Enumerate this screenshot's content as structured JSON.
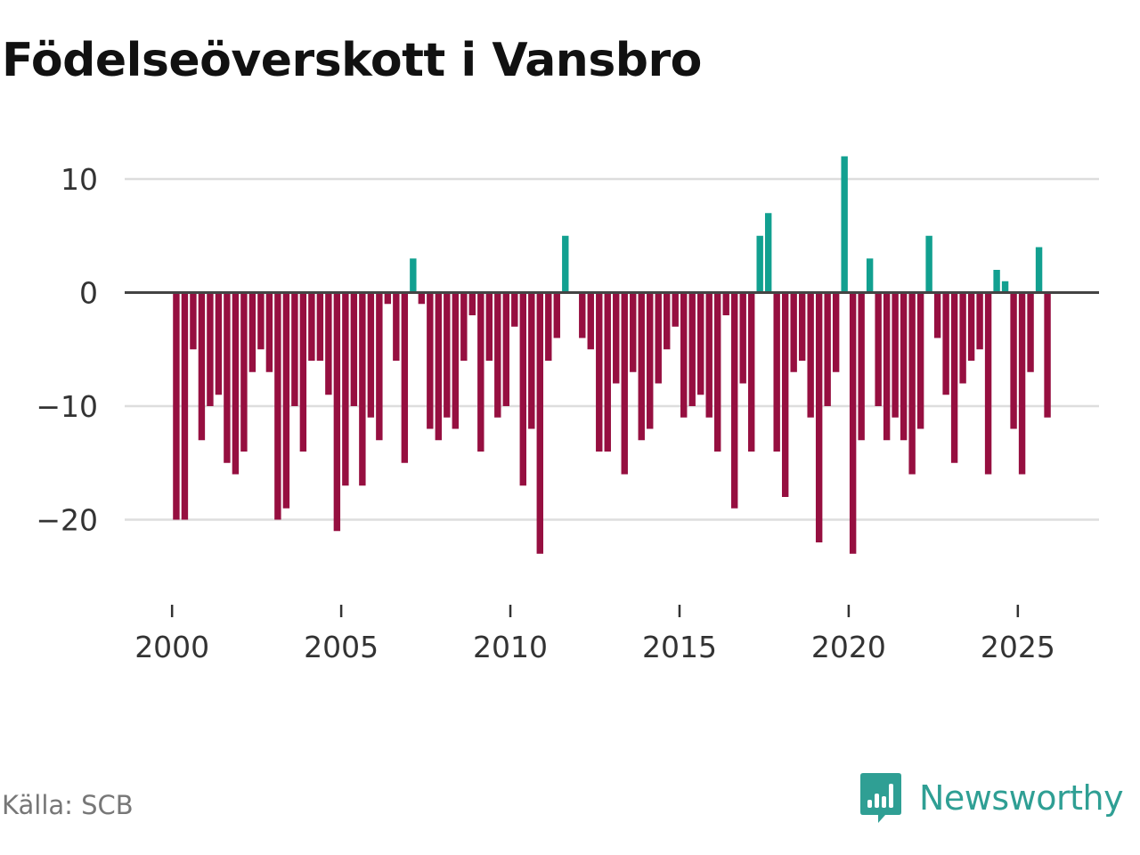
{
  "title": "Födelseöverskott i Vansbro",
  "source": "Källa: SCB",
  "brand": {
    "name": "Newsworthy",
    "icon": "newsworthy-logo-icon"
  },
  "colors": {
    "positive": "#12a090",
    "negative": "#960f40",
    "grid": "#dddddd",
    "zero_line": "#444444",
    "axis_text": "#333333",
    "brand": "#2f9f94"
  },
  "chart_data": {
    "type": "bar",
    "title": "Födelseöverskott i Vansbro",
    "xlabel": "",
    "ylabel": "",
    "x_start": 2000.0,
    "x_step": 0.25,
    "xlim": [
      1998.6,
      2027.4
    ],
    "xticks": [
      2000,
      2005,
      2010,
      2015,
      2020,
      2025
    ],
    "xtick_labels": [
      "2000",
      "2005",
      "2010",
      "2015",
      "2020",
      "2025"
    ],
    "ylim": [
      -26,
      14
    ],
    "yticks": [
      10,
      0,
      -10,
      -20
    ],
    "ytick_labels": [
      "10",
      "0",
      "−10",
      "−20"
    ],
    "grid": true,
    "values": [
      -20,
      -20,
      -5,
      -13,
      -10,
      -9,
      -15,
      -16,
      -14,
      -7,
      -5,
      -7,
      -20,
      -19,
      -10,
      -14,
      -6,
      -6,
      -9,
      -21,
      -17,
      -10,
      -17,
      -11,
      -13,
      -1,
      -6,
      -15,
      3,
      -1,
      -12,
      -13,
      -11,
      -12,
      -6,
      -2,
      -14,
      -6,
      -11,
      -10,
      -3,
      -17,
      -12,
      -23,
      -6,
      -4,
      5,
      0,
      -4,
      -5,
      -14,
      -14,
      -8,
      -16,
      -7,
      -13,
      -12,
      -8,
      -5,
      -3,
      -11,
      -10,
      -9,
      -11,
      -14,
      -2,
      -19,
      -8,
      -14,
      5,
      7,
      -14,
      -18,
      -7,
      -6,
      -11,
      -22,
      -10,
      -7,
      12,
      -23,
      -13,
      3,
      -10,
      -13,
      -11,
      -13,
      -16,
      -12,
      5,
      -4,
      -9,
      -15,
      -8,
      -6,
      -5,
      -16,
      2,
      1,
      -12,
      -16,
      -7,
      4,
      -11
    ]
  }
}
